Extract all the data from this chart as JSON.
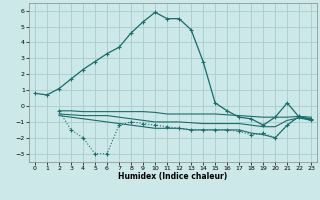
{
  "xlabel": "Humidex (Indice chaleur)",
  "bg_color": "#cce8e8",
  "grid_color": "#aacccc",
  "line_color": "#1a6b6b",
  "ylim": [
    -3.5,
    6.5
  ],
  "xlim": [
    -0.5,
    23.5
  ],
  "yticks": [
    -3,
    -2,
    -1,
    0,
    1,
    2,
    3,
    4,
    5,
    6
  ],
  "xticks": [
    0,
    1,
    2,
    3,
    4,
    5,
    6,
    7,
    8,
    9,
    10,
    11,
    12,
    13,
    14,
    15,
    16,
    17,
    18,
    19,
    20,
    21,
    22,
    23
  ],
  "main_x": [
    0,
    1,
    2,
    3,
    4,
    5,
    6,
    7,
    8,
    9,
    10,
    11,
    12,
    13,
    14,
    15,
    16,
    17,
    18,
    19,
    20,
    21,
    22,
    23
  ],
  "main_y": [
    0.8,
    0.7,
    1.1,
    1.7,
    2.3,
    2.8,
    3.3,
    3.7,
    4.6,
    5.3,
    5.9,
    5.5,
    5.5,
    4.8,
    2.8,
    0.2,
    -0.3,
    -0.7,
    -0.8,
    -1.2,
    -0.7,
    0.2,
    -0.7,
    -0.8
  ],
  "flat1_x": [
    2,
    3,
    4,
    5,
    6,
    7,
    8,
    9,
    10,
    11,
    12,
    13,
    14,
    15,
    16,
    17,
    18,
    19,
    20,
    21,
    22,
    23
  ],
  "flat1_y": [
    -0.3,
    -0.3,
    -0.35,
    -0.35,
    -0.35,
    -0.35,
    -0.35,
    -0.35,
    -0.4,
    -0.5,
    -0.5,
    -0.5,
    -0.5,
    -0.5,
    -0.55,
    -0.6,
    -0.65,
    -0.7,
    -0.7,
    -0.7,
    -0.65,
    -0.7
  ],
  "flat2_x": [
    2,
    3,
    4,
    5,
    6,
    7,
    8,
    9,
    10,
    11,
    12,
    13,
    14,
    15,
    16,
    17,
    18,
    19,
    20,
    21,
    22,
    23
  ],
  "flat2_y": [
    -0.5,
    -0.55,
    -0.6,
    -0.6,
    -0.6,
    -0.7,
    -0.8,
    -0.9,
    -1.0,
    -1.0,
    -1.0,
    -1.05,
    -1.1,
    -1.1,
    -1.1,
    -1.1,
    -1.2,
    -1.3,
    -1.3,
    -0.9,
    -0.75,
    -0.9
  ],
  "flat3_x": [
    2,
    3,
    4,
    5,
    6,
    7,
    8,
    9,
    10,
    11,
    12,
    13,
    14,
    15,
    16,
    17,
    18,
    19,
    20,
    21,
    22,
    23
  ],
  "flat3_y": [
    -0.6,
    -0.7,
    -0.8,
    -0.9,
    -1.0,
    -1.1,
    -1.2,
    -1.3,
    -1.4,
    -1.4,
    -1.4,
    -1.5,
    -1.5,
    -1.5,
    -1.5,
    -1.5,
    -1.7,
    -1.8,
    -2.0,
    -1.2,
    -0.65,
    -0.9
  ],
  "dip_x": [
    2,
    3,
    4,
    5,
    6,
    7,
    8,
    9,
    10,
    11,
    12,
    13,
    14,
    15,
    16,
    17,
    18,
    19,
    20,
    21,
    22,
    23
  ],
  "dip_y": [
    -0.3,
    -1.5,
    -2.0,
    -3.0,
    -3.0,
    -1.2,
    -1.0,
    -1.1,
    -1.2,
    -1.3,
    -1.4,
    -1.5,
    -1.5,
    -1.5,
    -1.5,
    -1.6,
    -1.8,
    -1.7,
    -2.0,
    -1.2,
    -0.6,
    -0.9
  ]
}
